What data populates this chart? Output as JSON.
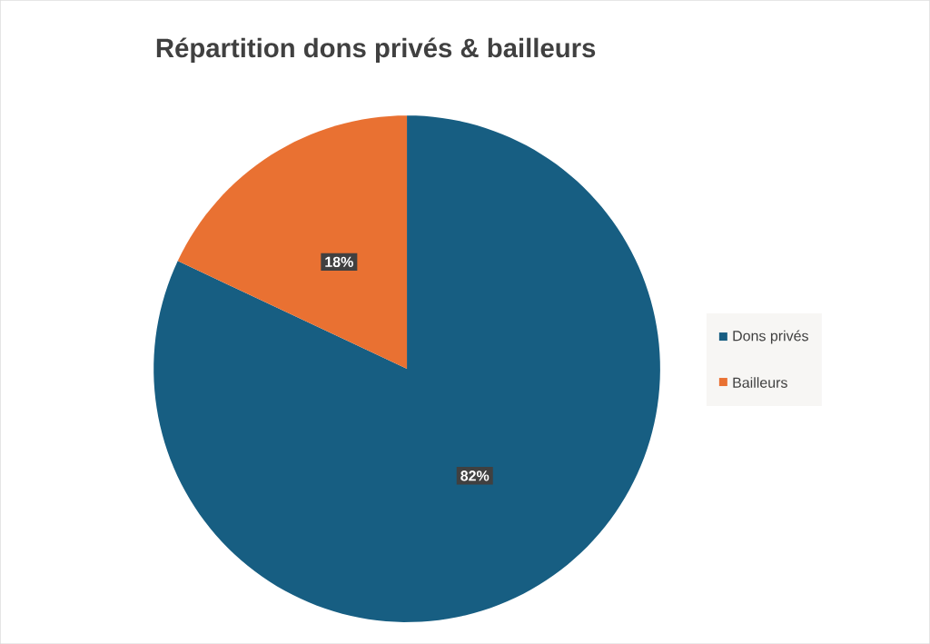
{
  "chart_data": {
    "type": "pie",
    "title": "Répartition dons privés & bailleurs",
    "categories": [
      "Dons privés",
      "Bailleurs"
    ],
    "values": [
      82,
      18
    ],
    "colors": [
      "#175e82",
      "#e97132"
    ],
    "value_labels": [
      "82%",
      "18%"
    ],
    "legend": "right"
  }
}
